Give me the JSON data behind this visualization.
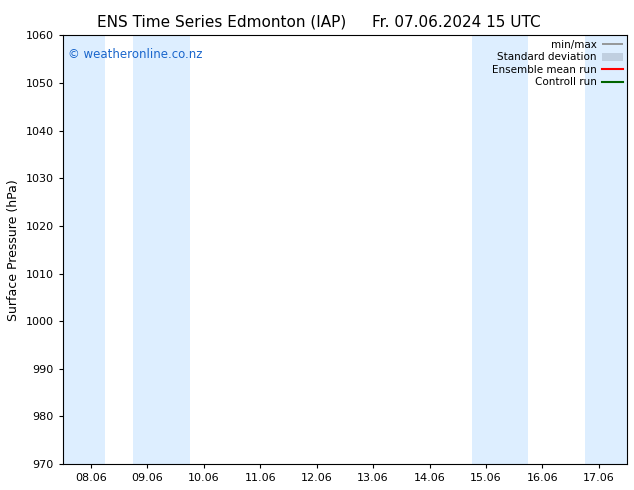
{
  "title_left": "ENS Time Series Edmonton (IAP)",
  "title_right": "Fr. 07.06.2024 15 UTC",
  "ylabel": "Surface Pressure (hPa)",
  "ylim": [
    970,
    1060
  ],
  "yticks": [
    970,
    980,
    990,
    1000,
    1010,
    1020,
    1030,
    1040,
    1050,
    1060
  ],
  "xtick_labels": [
    "08.06",
    "09.06",
    "10.06",
    "11.06",
    "12.06",
    "13.06",
    "14.06",
    "15.06",
    "16.06",
    "17.06"
  ],
  "xtick_positions": [
    0,
    1,
    2,
    3,
    4,
    5,
    6,
    7,
    8,
    9
  ],
  "xlim": [
    -0.5,
    9.5
  ],
  "shaded_bands": [
    {
      "xmin": -0.5,
      "xmax": 0.25
    },
    {
      "xmin": 0.75,
      "xmax": 1.75
    },
    {
      "xmin": 6.75,
      "xmax": 7.75
    },
    {
      "xmin": 8.75,
      "xmax": 9.5
    }
  ],
  "band_color": "#ddeeff",
  "watermark": "© weatheronline.co.nz",
  "watermark_color": "#1a66cc",
  "bg_color": "#ffffff",
  "spine_color": "#000000",
  "tick_color": "#000000",
  "label_fontsize": 8,
  "ylabel_fontsize": 9,
  "title_fontsize": 11
}
